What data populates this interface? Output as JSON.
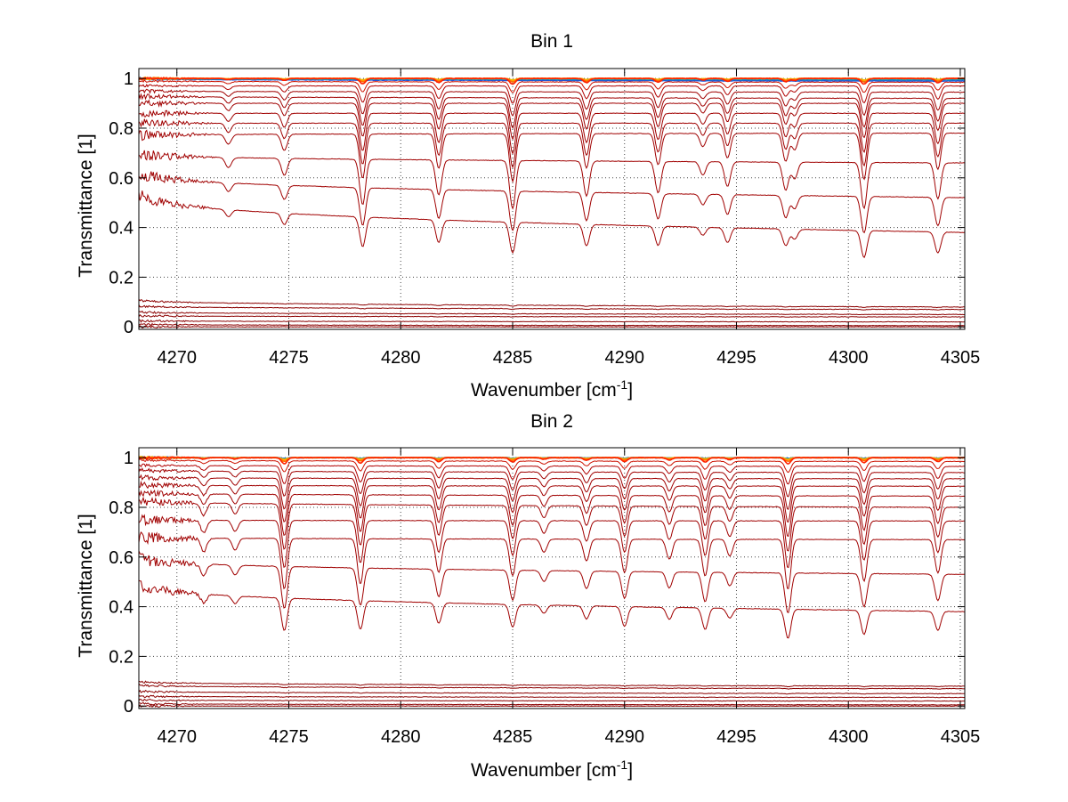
{
  "figure": {
    "background": "#ffffff",
    "axes_color": "#000000",
    "grid_color": "#444444"
  },
  "chart_data": [
    {
      "type": "line",
      "title": "Bin 1",
      "xlabel": "Wavenumber [cm",
      "xlabel_sup": "-1",
      "xlabel_close": "]",
      "ylabel": "Transmittance [1]",
      "xlim": [
        4268.3,
        4305.2
      ],
      "ylim": [
        -0.01,
        1.04
      ],
      "xticks": [
        4270,
        4275,
        4280,
        4285,
        4290,
        4295,
        4300,
        4305
      ],
      "xtick_labels": [
        "4270",
        "4275",
        "4280",
        "4285",
        "4290",
        "4295",
        "4300",
        "4305"
      ],
      "yticks": [
        0,
        0.2,
        0.4,
        0.6,
        0.8,
        1
      ],
      "ytick_labels": [
        "0",
        "0.2",
        "0.4",
        "0.6",
        "0.8",
        "1"
      ],
      "grid": "dotted",
      "legend": "none",
      "lines": [
        {
          "center": 4278.3,
          "rel_depth": 0.27
        },
        {
          "center": 4281.7,
          "rel_depth": 0.21
        },
        {
          "center": 4285.0,
          "rel_depth": 0.29
        },
        {
          "center": 4288.3,
          "rel_depth": 0.21
        },
        {
          "center": 4291.5,
          "rel_depth": 0.19
        },
        {
          "center": 4293.5,
          "rel_depth": 0.08
        },
        {
          "center": 4294.6,
          "rel_depth": 0.15
        },
        {
          "center": 4297.2,
          "rel_depth": 0.17
        },
        {
          "center": 4297.6,
          "rel_depth": 0.1
        },
        {
          "center": 4300.7,
          "rel_depth": 0.28
        },
        {
          "center": 4304.0,
          "rel_depth": 0.22
        },
        {
          "center": 4274.8,
          "rel_depth": 0.1
        },
        {
          "center": 4272.3,
          "rel_depth": 0.06
        }
      ],
      "series": [
        {
          "color": "#1f4fd8",
          "base_start": 1.0,
          "base_end": 0.99,
          "scale": 0.01
        },
        {
          "color": "#00a0c8",
          "base_start": 1.0,
          "base_end": 0.995,
          "scale": 0.015
        },
        {
          "color": "#e6c400",
          "base_start": 1.0,
          "base_end": 1.0,
          "scale": 0.02
        },
        {
          "color": "#ffaa00",
          "base_start": 1.0,
          "base_end": 1.0,
          "scale": 0.03
        },
        {
          "color": "#ff6a00",
          "base_start": 1.0,
          "base_end": 1.0,
          "scale": 0.05
        },
        {
          "color": "#ff2200",
          "base_start": 1.0,
          "base_end": 1.0,
          "scale": 0.08
        },
        {
          "color": "#cc1100",
          "base_start": 0.99,
          "base_end": 0.985,
          "scale": 0.15
        },
        {
          "color": "#b00000",
          "base_start": 0.97,
          "base_end": 0.97,
          "scale": 0.25
        },
        {
          "color": "#a00000",
          "base_start": 0.95,
          "base_end": 0.945,
          "scale": 0.35
        },
        {
          "color": "#a00000",
          "base_start": 0.93,
          "base_end": 0.92,
          "scale": 0.45
        },
        {
          "color": "#a00000",
          "base_start": 0.9,
          "base_end": 0.9,
          "scale": 0.55
        },
        {
          "color": "#a00000",
          "base_start": 0.86,
          "base_end": 0.86,
          "scale": 0.65
        },
        {
          "color": "#a00000",
          "base_start": 0.82,
          "base_end": 0.82,
          "scale": 0.75
        },
        {
          "color": "#a00000",
          "base_start": 0.77,
          "base_end": 0.78,
          "scale": 0.85
        },
        {
          "color": "#a00000",
          "base_start": 0.7,
          "base_end": 0.66,
          "scale": 1.0
        },
        {
          "color": "#a00000",
          "base_start": 0.63,
          "base_end": 0.52,
          "scale": 1.0
        },
        {
          "color": "#a00000",
          "base_start": 0.55,
          "base_end": 0.38,
          "scale": 1.0
        },
        {
          "color": "#8b0000",
          "base_start": 0.11,
          "base_end": 0.08,
          "scale": 0.15
        },
        {
          "color": "#8b0000",
          "base_start": 0.085,
          "base_end": 0.07,
          "scale": 0.12
        },
        {
          "color": "#8b0000",
          "base_start": 0.06,
          "base_end": 0.05,
          "scale": 0.1
        },
        {
          "color": "#8b0000",
          "base_start": 0.045,
          "base_end": 0.04,
          "scale": 0.08
        },
        {
          "color": "#8b0000",
          "base_start": 0.025,
          "base_end": 0.02,
          "scale": 0.05
        },
        {
          "color": "#8b0000",
          "base_start": 0.01,
          "base_end": 0.005,
          "scale": 0.02
        },
        {
          "color": "#8b0000",
          "base_start": 0.0,
          "base_end": 0.0,
          "scale": 0.0
        }
      ]
    },
    {
      "type": "line",
      "title": "Bin 2",
      "xlabel": "Wavenumber [cm",
      "xlabel_sup": "-1",
      "xlabel_close": "]",
      "ylabel": "Transmittance [1]",
      "xlim": [
        4268.3,
        4305.2
      ],
      "ylim": [
        -0.01,
        1.04
      ],
      "xticks": [
        4270,
        4275,
        4280,
        4285,
        4290,
        4295,
        4300,
        4305
      ],
      "xtick_labels": [
        "4270",
        "4275",
        "4280",
        "4285",
        "4290",
        "4295",
        "4300",
        "4305"
      ],
      "yticks": [
        0,
        0.2,
        0.4,
        0.6,
        0.8,
        1
      ],
      "ytick_labels": [
        "0",
        "0.2",
        "0.4",
        "0.6",
        "0.8",
        "1"
      ],
      "grid": "dotted",
      "legend": "none",
      "lines": [
        {
          "center": 4274.8,
          "rel_depth": 0.3
        },
        {
          "center": 4278.2,
          "rel_depth": 0.27
        },
        {
          "center": 4281.7,
          "rel_depth": 0.2
        },
        {
          "center": 4285.0,
          "rel_depth": 0.22
        },
        {
          "center": 4286.4,
          "rel_depth": 0.08
        },
        {
          "center": 4288.3,
          "rel_depth": 0.13
        },
        {
          "center": 4290.0,
          "rel_depth": 0.2
        },
        {
          "center": 4292.0,
          "rel_depth": 0.12
        },
        {
          "center": 4293.6,
          "rel_depth": 0.22
        },
        {
          "center": 4294.7,
          "rel_depth": 0.1
        },
        {
          "center": 4297.3,
          "rel_depth": 0.3
        },
        {
          "center": 4300.7,
          "rel_depth": 0.25
        },
        {
          "center": 4304.0,
          "rel_depth": 0.2
        },
        {
          "center": 4271.2,
          "rel_depth": 0.08
        },
        {
          "center": 4272.6,
          "rel_depth": 0.07
        }
      ],
      "series": [
        {
          "color": "#1f4fd8",
          "base_start": 1.0,
          "base_end": 1.0,
          "scale": 0.01
        },
        {
          "color": "#00a0c8",
          "base_start": 1.0,
          "base_end": 1.0,
          "scale": 0.015
        },
        {
          "color": "#e6c400",
          "base_start": 1.0,
          "base_end": 1.0,
          "scale": 0.02
        },
        {
          "color": "#ffaa00",
          "base_start": 1.0,
          "base_end": 1.0,
          "scale": 0.03
        },
        {
          "color": "#ff6a00",
          "base_start": 1.0,
          "base_end": 1.0,
          "scale": 0.05
        },
        {
          "color": "#ff2200",
          "base_start": 1.0,
          "base_end": 1.0,
          "scale": 0.08
        },
        {
          "color": "#cc1100",
          "base_start": 0.99,
          "base_end": 0.985,
          "scale": 0.15
        },
        {
          "color": "#b00000",
          "base_start": 0.97,
          "base_end": 0.965,
          "scale": 0.25
        },
        {
          "color": "#a00000",
          "base_start": 0.95,
          "base_end": 0.94,
          "scale": 0.35
        },
        {
          "color": "#a00000",
          "base_start": 0.92,
          "base_end": 0.915,
          "scale": 0.45
        },
        {
          "color": "#a00000",
          "base_start": 0.89,
          "base_end": 0.885,
          "scale": 0.55
        },
        {
          "color": "#a00000",
          "base_start": 0.86,
          "base_end": 0.845,
          "scale": 0.65
        },
        {
          "color": "#a00000",
          "base_start": 0.83,
          "base_end": 0.8,
          "scale": 0.75
        },
        {
          "color": "#a00000",
          "base_start": 0.75,
          "base_end": 0.745,
          "scale": 0.85
        },
        {
          "color": "#a00000",
          "base_start": 0.68,
          "base_end": 0.67,
          "scale": 1.0
        },
        {
          "color": "#a00000",
          "base_start": 0.6,
          "base_end": 0.53,
          "scale": 1.0
        },
        {
          "color": "#a00000",
          "base_start": 0.5,
          "base_end": 0.38,
          "scale": 1.0
        },
        {
          "color": "#8b0000",
          "base_start": 0.1,
          "base_end": 0.08,
          "scale": 0.15
        },
        {
          "color": "#8b0000",
          "base_start": 0.085,
          "base_end": 0.07,
          "scale": 0.12
        },
        {
          "color": "#8b0000",
          "base_start": 0.06,
          "base_end": 0.05,
          "scale": 0.1
        },
        {
          "color": "#8b0000",
          "base_start": 0.04,
          "base_end": 0.035,
          "scale": 0.08
        },
        {
          "color": "#8b0000",
          "base_start": 0.025,
          "base_end": 0.02,
          "scale": 0.05
        },
        {
          "color": "#8b0000",
          "base_start": 0.01,
          "base_end": 0.005,
          "scale": 0.02
        },
        {
          "color": "#8b0000",
          "base_start": 0.0,
          "base_end": 0.0,
          "scale": 0.0
        }
      ]
    }
  ]
}
